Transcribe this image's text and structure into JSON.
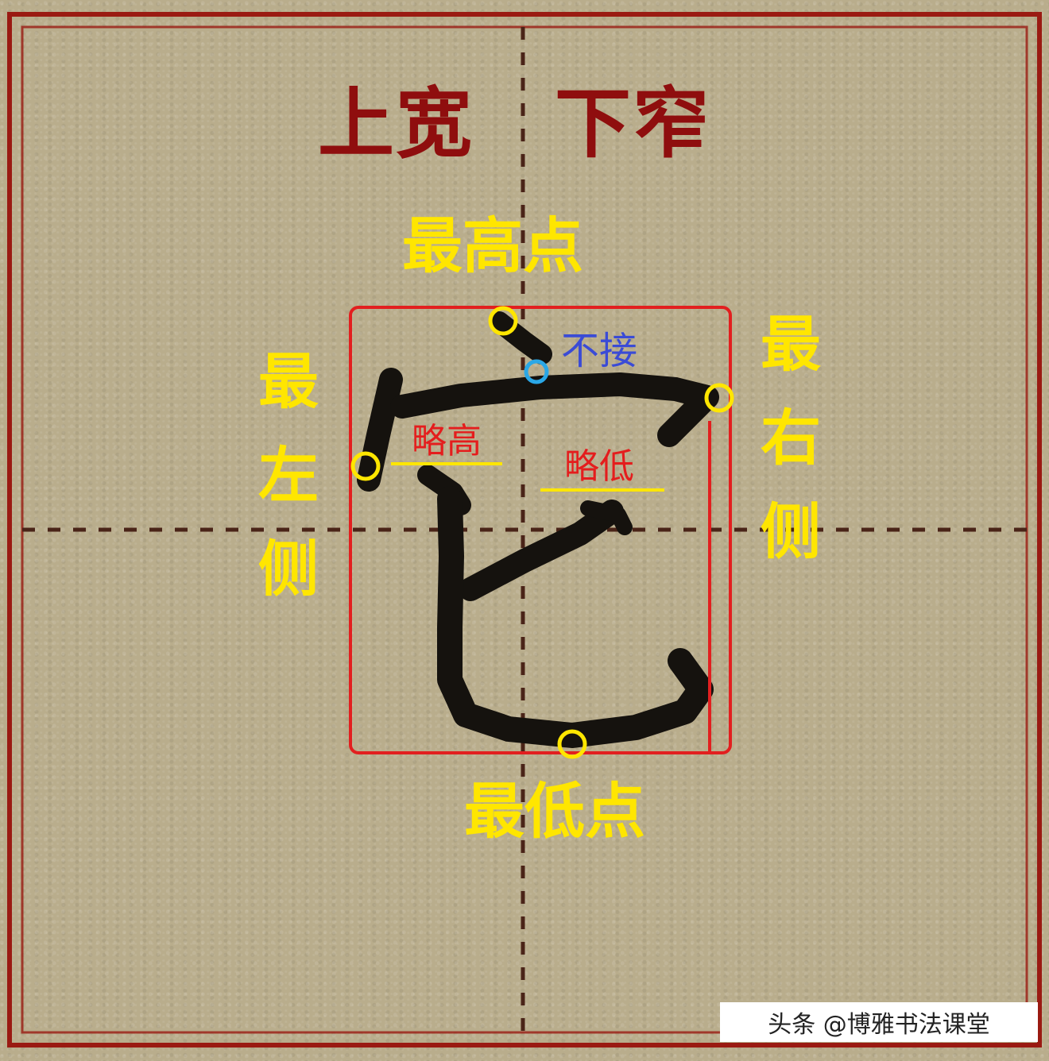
{
  "title": {
    "left": "上宽",
    "right": "下窄"
  },
  "labels": {
    "top": "最高点",
    "bottom": "最低点",
    "left": "最左侧",
    "right": "最右侧",
    "not_connected": "不接",
    "slightly_high": "略高",
    "slightly_low": "略低"
  },
  "colors": {
    "paper": "#b9ad8c",
    "grid_border": "#9a1a12",
    "guide_dash": "#4a2418",
    "bounding_box": "#e21f1f",
    "marker_yellow": "#ffe600",
    "marker_blue": "#2aa7e6",
    "ink": "#15120e"
  },
  "watermark": "头条 @博雅书法课堂"
}
